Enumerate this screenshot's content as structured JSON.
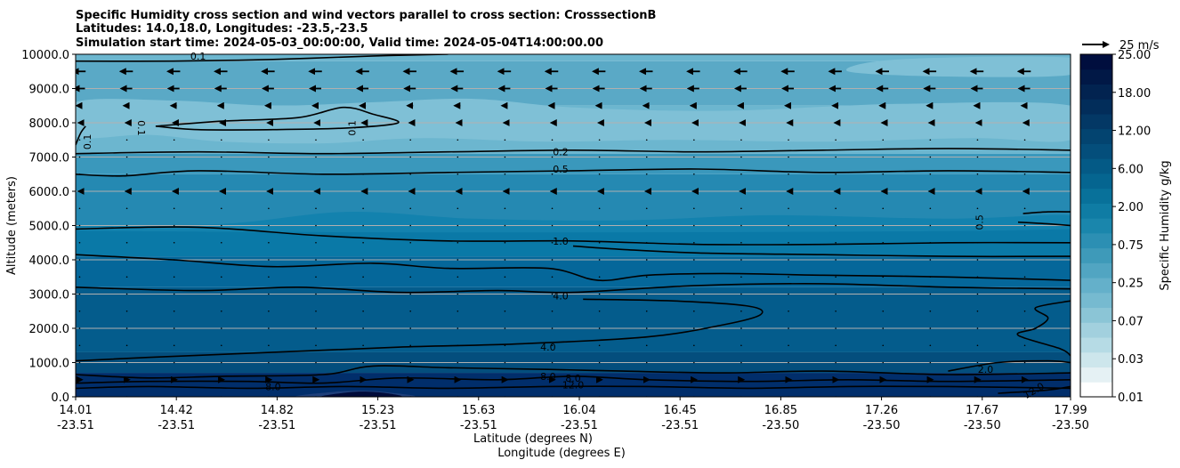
{
  "chart_data": {
    "type": "contour",
    "title": [
      "Specific Humidity cross section and wind vectors parallel to cross section: CrosssectionB",
      "Latitudes: 14.0,18.0, Longitudes: -23.5,-23.5",
      "Simulation start time: 2024-05-03_00:00:00, Valid time: 2024-05-04T14:00:00.00"
    ],
    "xlabel": "Latitude (degrees N)",
    "xlabel2": "Longitude (degrees E)",
    "ylabel": "Altitude (meters)",
    "xlim": [
      14.01,
      17.99
    ],
    "ylim": [
      0,
      10000
    ],
    "x_ticks": [
      {
        "lat": "14.01",
        "lon": "-23.51"
      },
      {
        "lat": "14.42",
        "lon": "-23.51"
      },
      {
        "lat": "14.82",
        "lon": "-23.51"
      },
      {
        "lat": "15.23",
        "lon": "-23.51"
      },
      {
        "lat": "15.63",
        "lon": "-23.51"
      },
      {
        "lat": "16.04",
        "lon": "-23.51"
      },
      {
        "lat": "16.45",
        "lon": "-23.51"
      },
      {
        "lat": "16.85",
        "lon": "-23.50"
      },
      {
        "lat": "17.26",
        "lon": "-23.50"
      },
      {
        "lat": "17.67",
        "lon": "-23.50"
      },
      {
        "lat": "17.99",
        "lon": "-23.50"
      }
    ],
    "y_ticks": [
      "0.0",
      "1000.0",
      "2000.0",
      "3000.0",
      "4000.0",
      "5000.0",
      "6000.0",
      "7000.0",
      "8000.0",
      "9000.0",
      "10000.0"
    ],
    "y_tick_values": [
      0,
      1000,
      2000,
      3000,
      4000,
      5000,
      6000,
      7000,
      8000,
      9000,
      10000
    ],
    "grid": "horizontal",
    "colorbar": {
      "label": "Specific Humidity g/kg",
      "ticks": [
        "0.01",
        "0.03",
        "0.07",
        "0.25",
        "0.75",
        "2.00",
        "6.00",
        "12.00",
        "18.00",
        "25.00"
      ],
      "colors": [
        "#ffffff",
        "#e5f1f4",
        "#cde6ec",
        "#b6dbe5",
        "#a2d0de",
        "#8bc5d6",
        "#76bad0",
        "#64b0ca",
        "#51a5c2",
        "#3e9ab9",
        "#2c8fb3",
        "#1a86ac",
        "#0f7ca4",
        "#08719a",
        "#056590",
        "#045a86",
        "#044e7b",
        "#034470",
        "#033865",
        "#022d5a",
        "#022350",
        "#011846",
        "#000e3e"
      ]
    },
    "bands": [
      {
        "y0": 0,
        "y1": 700,
        "color": "#012e6b"
      },
      {
        "y0": 700,
        "y1": 1300,
        "color": "#044e7d"
      },
      {
        "y0": 1300,
        "y1": 3200,
        "color": "#045c8c"
      },
      {
        "y0": 3200,
        "y1": 4100,
        "color": "#05679a"
      },
      {
        "y0": 4100,
        "y1": 5000,
        "color": "#0a79a7"
      },
      {
        "y0": 5000,
        "y1": 6500,
        "color": "#2589b2"
      },
      {
        "y0": 6500,
        "y1": 7100,
        "color": "#3a98bc"
      },
      {
        "y0": 7100,
        "y1": 8500,
        "color": "#6cb6cf"
      },
      {
        "y0": 8500,
        "y1": 9800,
        "color": "#5aa9c6"
      },
      {
        "y0": 9800,
        "y1": 10000,
        "color": "#6cb6cf"
      }
    ],
    "patches": [
      {
        "color": "#7fc0d6",
        "pts": [
          [
            14.01,
            7600
          ],
          [
            14.3,
            7650
          ],
          [
            14.6,
            7450
          ],
          [
            15.0,
            7400
          ],
          [
            15.4,
            7550
          ],
          [
            15.9,
            7450
          ],
          [
            16.4,
            7500
          ],
          [
            17.0,
            7450
          ],
          [
            17.6,
            7550
          ],
          [
            17.99,
            7500
          ],
          [
            17.99,
            8500
          ],
          [
            17.3,
            8550
          ],
          [
            16.6,
            8350
          ],
          [
            16.0,
            8450
          ],
          [
            15.6,
            8700
          ],
          [
            15.2,
            8600
          ],
          [
            14.8,
            8500
          ],
          [
            14.4,
            8650
          ],
          [
            14.01,
            8600
          ]
        ]
      },
      {
        "color": "#7fc0d6",
        "pts": [
          [
            17.1,
            9500
          ],
          [
            17.5,
            9350
          ],
          [
            17.99,
            9400
          ],
          [
            17.99,
            9900
          ],
          [
            17.3,
            9850
          ]
        ]
      },
      {
        "color": "#1382ae",
        "pts": [
          [
            14.01,
            5000
          ],
          [
            14.6,
            5050
          ],
          [
            15.1,
            5400
          ],
          [
            15.6,
            5200
          ],
          [
            16.2,
            5150
          ],
          [
            16.8,
            5300
          ],
          [
            17.5,
            5200
          ],
          [
            17.99,
            5300
          ],
          [
            17.99,
            4900
          ],
          [
            16.0,
            4800
          ],
          [
            14.01,
            4850
          ]
        ]
      },
      {
        "color": "#1e3f7a",
        "pts": [
          [
            14.9,
            0
          ],
          [
            15.05,
            150
          ],
          [
            15.17,
            180
          ],
          [
            15.27,
            120
          ],
          [
            15.35,
            0
          ]
        ]
      },
      {
        "color": "#000b3a",
        "pts": [
          [
            15.0,
            0
          ],
          [
            15.1,
            130
          ],
          [
            15.18,
            150
          ],
          [
            15.26,
            100
          ],
          [
            15.3,
            0
          ]
        ]
      }
    ],
    "contours": [
      {
        "level": "0.1",
        "pts": [
          [
            14.01,
            9800
          ],
          [
            14.4,
            9800
          ],
          [
            14.8,
            9850
          ],
          [
            15.2,
            9950
          ],
          [
            15.5,
            10000
          ]
        ]
      },
      {
        "level": "0.1",
        "pts": [
          [
            14.01,
            7350
          ],
          [
            14.03,
            7700
          ],
          [
            14.05,
            7900
          ]
        ]
      },
      {
        "level": "0.1",
        "pts": [
          [
            14.33,
            7900
          ],
          [
            14.6,
            8050
          ],
          [
            14.9,
            8150
          ],
          [
            15.08,
            8450
          ],
          [
            15.2,
            8250
          ],
          [
            15.3,
            8000
          ],
          [
            15.1,
            7850
          ],
          [
            14.8,
            7800
          ],
          [
            14.5,
            7800
          ],
          [
            14.33,
            7900
          ]
        ]
      },
      {
        "level": "0.2",
        "pts": [
          [
            14.01,
            7100
          ],
          [
            14.5,
            7150
          ],
          [
            15.0,
            7100
          ],
          [
            15.5,
            7150
          ],
          [
            16.0,
            7200
          ],
          [
            16.5,
            7150
          ],
          [
            17.0,
            7200
          ],
          [
            17.5,
            7250
          ],
          [
            17.99,
            7200
          ]
        ]
      },
      {
        "level": "0.5",
        "pts": [
          [
            14.01,
            6500
          ],
          [
            14.2,
            6450
          ],
          [
            14.5,
            6600
          ],
          [
            15.0,
            6500
          ],
          [
            15.5,
            6550
          ],
          [
            16.0,
            6600
          ],
          [
            16.5,
            6650
          ],
          [
            17.0,
            6550
          ],
          [
            17.5,
            6600
          ],
          [
            17.99,
            6550
          ]
        ]
      },
      {
        "level": "0.5",
        "pts": [
          [
            17.8,
            5350
          ],
          [
            17.9,
            5400
          ],
          [
            17.99,
            5400
          ]
        ]
      },
      {
        "level": "0.5",
        "pts": [
          [
            17.78,
            5100
          ],
          [
            17.9,
            5050
          ],
          [
            17.99,
            5000
          ]
        ]
      },
      {
        "level": "1.0",
        "pts": [
          [
            14.01,
            4900
          ],
          [
            14.5,
            4950
          ],
          [
            15.0,
            4700
          ],
          [
            15.5,
            4550
          ],
          [
            16.0,
            4550
          ],
          [
            16.5,
            4450
          ],
          [
            17.0,
            4450
          ],
          [
            17.5,
            4500
          ],
          [
            17.99,
            4500
          ]
        ]
      },
      {
        "level": "1.0",
        "pts": [
          [
            14.01,
            4150
          ],
          [
            14.4,
            4000
          ],
          [
            14.8,
            3800
          ],
          [
            15.2,
            3900
          ],
          [
            15.5,
            3750
          ],
          [
            15.9,
            3750
          ],
          [
            16.1,
            3400
          ],
          [
            16.3,
            3550
          ],
          [
            16.6,
            3600
          ],
          [
            17.0,
            3550
          ],
          [
            17.5,
            3500
          ],
          [
            17.99,
            3400
          ]
        ]
      },
      {
        "level": "1.0",
        "pts": [
          [
            17.99,
            4100
          ],
          [
            17.5,
            4100
          ],
          [
            17.0,
            4150
          ],
          [
            16.5,
            4200
          ],
          [
            16.2,
            4300
          ],
          [
            16.0,
            4400
          ]
        ]
      },
      {
        "level": "4.0",
        "pts": [
          [
            14.01,
            3200
          ],
          [
            14.5,
            3100
          ],
          [
            14.9,
            3200
          ],
          [
            15.3,
            3050
          ],
          [
            15.7,
            3100
          ],
          [
            16.0,
            3050
          ],
          [
            16.5,
            3250
          ],
          [
            17.0,
            3300
          ],
          [
            17.5,
            3200
          ],
          [
            17.99,
            3150
          ]
        ]
      },
      {
        "level": "4.0",
        "pts": [
          [
            16.04,
            2850
          ],
          [
            16.4,
            2800
          ],
          [
            16.7,
            2650
          ],
          [
            16.75,
            2400
          ],
          [
            16.6,
            2100
          ],
          [
            16.3,
            1750
          ],
          [
            15.8,
            1550
          ],
          [
            15.3,
            1450
          ],
          [
            14.8,
            1300
          ],
          [
            14.3,
            1150
          ],
          [
            14.01,
            1050
          ]
        ]
      },
      {
        "level": "4.0",
        "pts": [
          [
            17.99,
            2800
          ],
          [
            17.85,
            2600
          ],
          [
            17.9,
            2300
          ],
          [
            17.85,
            2000
          ],
          [
            17.78,
            1800
          ],
          [
            17.95,
            1400
          ],
          [
            17.99,
            1200
          ]
        ]
      },
      {
        "level": "2.0",
        "pts": [
          [
            17.5,
            750
          ],
          [
            17.7,
            1000
          ],
          [
            17.9,
            1050
          ],
          [
            17.99,
            1000
          ]
        ]
      },
      {
        "level": "8.0",
        "pts": [
          [
            14.01,
            650
          ],
          [
            14.3,
            550
          ],
          [
            14.6,
            600
          ],
          [
            15.0,
            650
          ],
          [
            15.2,
            900
          ],
          [
            15.5,
            850
          ],
          [
            15.9,
            800
          ],
          [
            16.2,
            750
          ],
          [
            16.6,
            700
          ],
          [
            17.0,
            750
          ],
          [
            17.5,
            650
          ],
          [
            17.99,
            700
          ]
        ]
      },
      {
        "level": "8.0",
        "pts": [
          [
            14.01,
            400
          ],
          [
            14.3,
            450
          ],
          [
            14.7,
            450
          ],
          [
            15.0,
            400
          ],
          [
            15.3,
            550
          ],
          [
            15.7,
            500
          ],
          [
            16.0,
            600
          ],
          [
            16.3,
            500
          ],
          [
            16.7,
            450
          ],
          [
            17.1,
            500
          ],
          [
            17.5,
            450
          ],
          [
            17.99,
            500
          ]
        ]
      },
      {
        "level": "12.0",
        "pts": [
          [
            14.01,
            250
          ],
          [
            14.3,
            300
          ],
          [
            14.7,
            250
          ],
          [
            15.1,
            300
          ],
          [
            15.5,
            250
          ],
          [
            15.9,
            300
          ],
          [
            16.3,
            300
          ],
          [
            16.7,
            250
          ],
          [
            17.1,
            300
          ],
          [
            17.5,
            300
          ],
          [
            17.99,
            250
          ]
        ]
      },
      {
        "level": "12.0",
        "pts": [
          [
            17.7,
            100
          ],
          [
            17.9,
            200
          ],
          [
            17.99,
            300
          ]
        ]
      }
    ],
    "contour_labels": [
      {
        "text": "0.1",
        "x": 14.5,
        "y": 9950
      },
      {
        "text": "0.1",
        "x": 14.07,
        "y": 7550,
        "rotate": -90
      },
      {
        "text": "0.1",
        "x": 14.26,
        "y": 7950,
        "rotate": 90
      },
      {
        "text": "0.1",
        "x": 15.13,
        "y": 7950,
        "rotate": -90
      },
      {
        "text": "0.2",
        "x": 15.95,
        "y": 7150
      },
      {
        "text": "0.5",
        "x": 15.95,
        "y": 6650
      },
      {
        "text": "0.5",
        "x": 17.64,
        "y": 5200,
        "rotate": -90
      },
      {
        "text": "1.0",
        "x": 15.95,
        "y": 4550
      },
      {
        "text": "4.0",
        "x": 15.95,
        "y": 2950
      },
      {
        "text": "4.0",
        "x": 15.9,
        "y": 1450
      },
      {
        "text": "2.0",
        "x": 17.65,
        "y": 800
      },
      {
        "text": "8.0",
        "x": 14.8,
        "y": 300
      },
      {
        "text": "8.0",
        "x": 15.9,
        "y": 600
      },
      {
        "text": "8.0",
        "x": 16.0,
        "y": 550
      },
      {
        "text": "12.0",
        "x": 16.0,
        "y": 350
      },
      {
        "text": "12.0",
        "x": 17.85,
        "y": 200,
        "rotate": -30
      }
    ],
    "wind_vectors": {
      "key_label": "25 m/s",
      "key_speed": 25,
      "u_by_level": [
        {
          "y": 9500,
          "u": -9
        },
        {
          "y": 9000,
          "u": -8
        },
        {
          "y": 8500,
          "u": -4
        },
        {
          "y": 8000,
          "u": -1
        },
        {
          "y": 7500,
          "u": 0
        },
        {
          "y": 7000,
          "u": -0.5
        },
        {
          "y": 6500,
          "u": -0.5
        },
        {
          "y": 6000,
          "u": -1
        },
        {
          "y": 5500,
          "u": 0
        },
        {
          "y": 5000,
          "u": 0
        },
        {
          "y": 4500,
          "u": 0
        },
        {
          "y": 4000,
          "u": 0
        },
        {
          "y": 3500,
          "u": 0
        },
        {
          "y": 3000,
          "u": 0
        },
        {
          "y": 2500,
          "u": 0
        },
        {
          "y": 2000,
          "u": 0
        },
        {
          "y": 1500,
          "u": 0
        },
        {
          "y": 1000,
          "u": 0
        },
        {
          "y": 500,
          "u": 3
        },
        {
          "y": 0,
          "u": 0
        }
      ]
    }
  }
}
